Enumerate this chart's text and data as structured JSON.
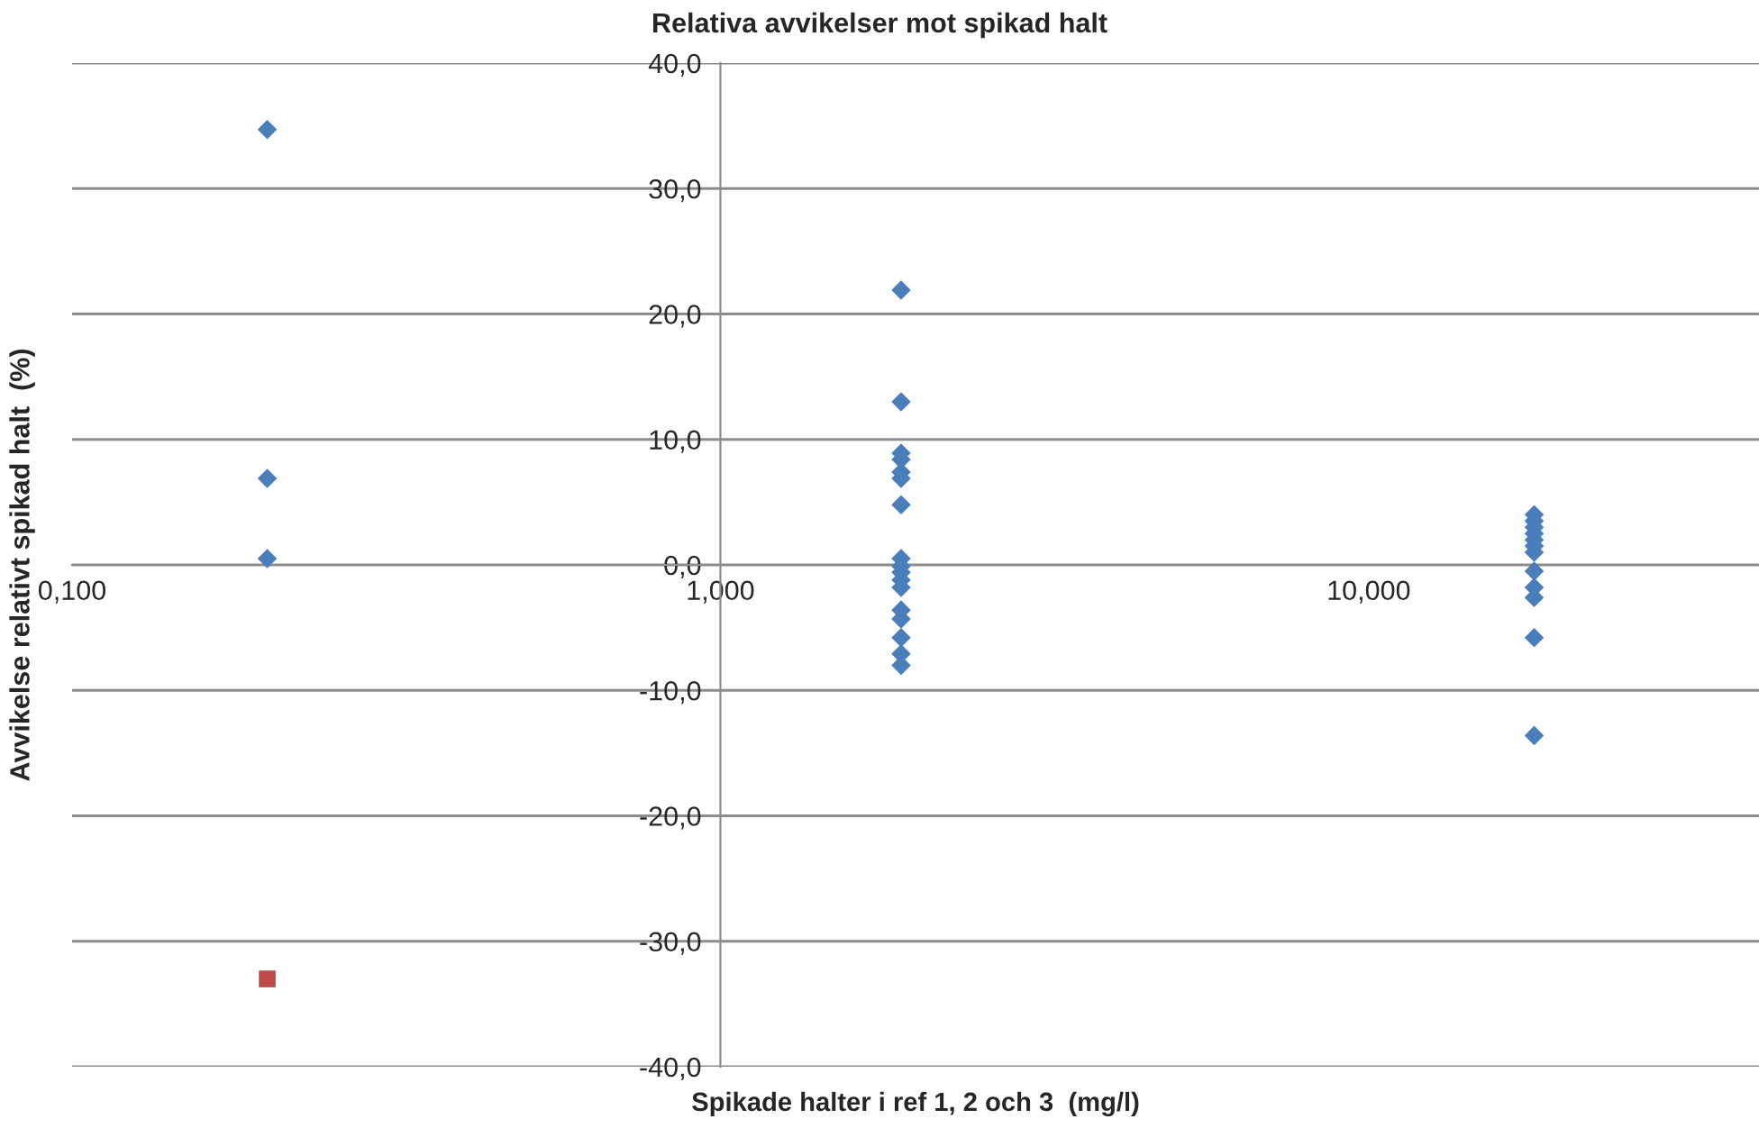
{
  "chart_data": {
    "type": "scatter",
    "title": "Relativa avvikelser mot spikad halt",
    "xlabel": "Spikade halter i ref 1, 2 och 3  (mg/l)",
    "ylabel": "Avvikelse relativt spikad halt  (%)",
    "log": "x",
    "grid": "y",
    "legend": false,
    "xlim": [
      0.1,
      40
    ],
    "xticks": [
      {
        "value": 0.1,
        "label": "0,100"
      },
      {
        "value": 1,
        "label": "1,000"
      },
      {
        "value": 10,
        "label": "10,000"
      }
    ],
    "ylim": [
      -40,
      40
    ],
    "yticks": [
      {
        "value": -40,
        "label": "-40,0"
      },
      {
        "value": -30,
        "label": "-30,0"
      },
      {
        "value": -20,
        "label": "-20,0"
      },
      {
        "value": -10,
        "label": "-10,0"
      },
      {
        "value": 0,
        "label": "0,0"
      },
      {
        "value": 10,
        "label": "10,0"
      },
      {
        "value": 20,
        "label": "20,0"
      },
      {
        "value": 30,
        "label": "30,0"
      },
      {
        "value": 40,
        "label": "40,0"
      }
    ],
    "series": [
      {
        "color": "#4a7ebb",
        "marker": "diamond",
        "x": [
          0.2,
          0.2,
          0.2,
          1.9,
          1.9,
          1.9,
          1.9,
          1.9,
          1.9,
          1.9,
          1.9,
          1.9,
          1.9,
          1.9,
          1.9,
          1.9,
          1.9,
          1.9,
          1.9,
          1.9,
          18,
          18,
          18,
          18,
          18,
          18,
          18,
          18,
          18,
          18,
          18,
          18
        ],
        "values": [
          34.7,
          6.9,
          0.5,
          21.9,
          13.0,
          8.9,
          8.4,
          7.4,
          6.9,
          4.8,
          0.5,
          -0.1,
          -0.6,
          -1.2,
          -1.8,
          -3.6,
          -4.3,
          -5.8,
          -7.1,
          -8.0,
          4.0,
          3.5,
          3.0,
          2.5,
          2.0,
          1.5,
          1.0,
          -0.5,
          -1.8,
          -2.6,
          -5.8,
          -13.6
        ]
      },
      {
        "color": "#be4b48",
        "marker": "square",
        "x": [
          0.2
        ],
        "values": [
          -33.0
        ]
      }
    ]
  }
}
